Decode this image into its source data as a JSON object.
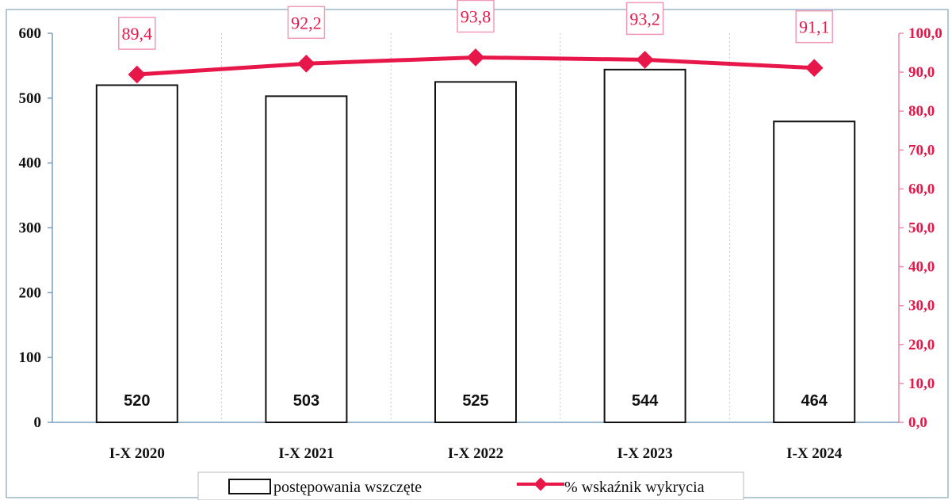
{
  "chart_data": {
    "type": "bar+line",
    "categories": [
      "I-X 2020",
      "I-X 2021",
      "I-X 2022",
      "I-X 2023",
      "I-X 2024"
    ],
    "series": [
      {
        "name": "postępowania wszczęte",
        "type": "bar",
        "axis": "left",
        "values": [
          520,
          503,
          525,
          544,
          464
        ],
        "data_labels": [
          "520",
          "503",
          "525",
          "544",
          "464"
        ],
        "color": "#ffffff"
      },
      {
        "name": "% wskaźnik wykrycia",
        "type": "line",
        "axis": "right",
        "values": [
          89.4,
          92.2,
          93.8,
          93.2,
          91.1
        ],
        "data_labels": [
          "89,4",
          "92,2",
          "93,8",
          "93,2",
          "91,1"
        ],
        "color": "#e8174a"
      }
    ],
    "y_left": {
      "ylim": [
        0,
        600
      ],
      "ticks": [
        "0",
        "100",
        "200",
        "300",
        "400",
        "500",
        "600"
      ]
    },
    "y_right": {
      "ylim": [
        0,
        100
      ],
      "ticks": [
        "0,0",
        "10,0",
        "20,0",
        "30,0",
        "40,0",
        "50,0",
        "60,0",
        "70,0",
        "80,0",
        "90,0",
        "100,0"
      ]
    },
    "grid": "vertical dotted",
    "legend": {
      "position": "bottom",
      "entries": [
        "postępowania wszczęte",
        "% wskaźnik wykrycia"
      ]
    }
  }
}
